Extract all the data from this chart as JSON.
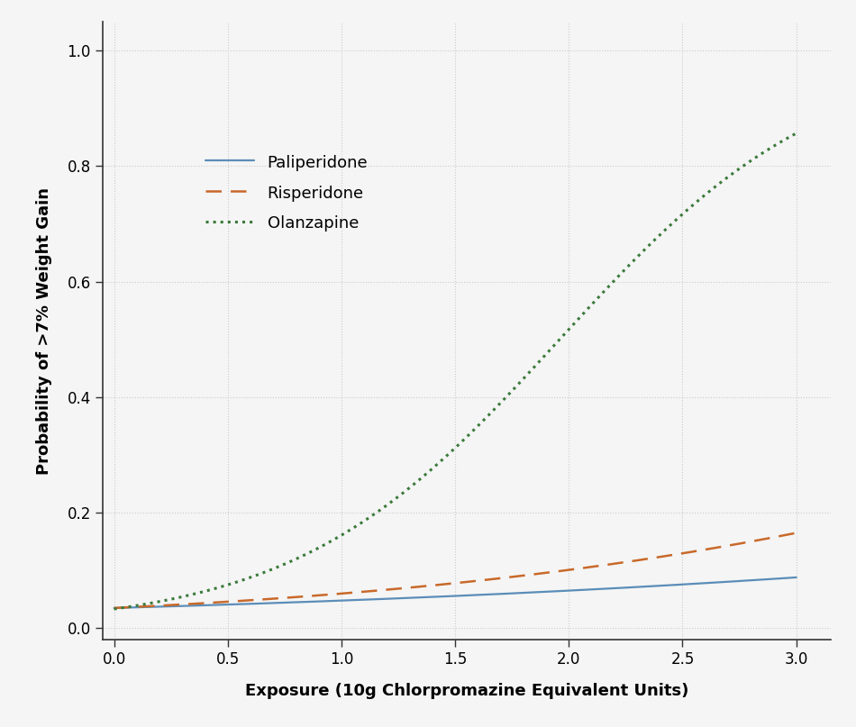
{
  "title": "",
  "xlabel": "Exposure (10g Chlorpromazine Equivalent Units)",
  "ylabel": "Probability of >7% Weight Gain",
  "xlim": [
    -0.02,
    3.1
  ],
  "ylim": [
    -0.02,
    1.05
  ],
  "xticks": [
    0.0,
    0.5,
    1.0,
    1.5,
    2.0,
    2.5,
    3.0
  ],
  "yticks": [
    0.0,
    0.2,
    0.4,
    0.6,
    0.8,
    1.0
  ],
  "background_color": "#f5f5f5",
  "grid_color": "#cccccc",
  "series": [
    {
      "name": "Paliperidone",
      "color": "#5b8db8",
      "linestyle": "solid",
      "linewidth": 1.6
    },
    {
      "name": "Risperidone",
      "color": "#c8692a",
      "linestyle": "dashed",
      "linewidth": 1.8
    },
    {
      "name": "Olanzapine",
      "color": "#3a7a3a",
      "linestyle": "dotted",
      "linewidth": 2.2
    }
  ],
  "font_family": "sans-serif",
  "axis_label_fontsize": 13,
  "tick_fontsize": 12,
  "legend_fontsize": 13,
  "pal_logit_intercept": -3.27,
  "pal_logit_slope": 0.53,
  "ris_logit_intercept": -3.27,
  "ris_logit_slope": 1.28,
  "ola_logit_intercept": -3.37,
  "ola_logit_slope": 1.72
}
